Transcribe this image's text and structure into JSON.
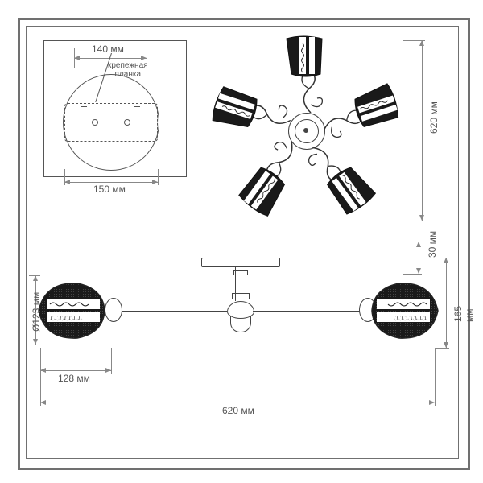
{
  "frame": {
    "outer_color": "#707070",
    "inner_color": "#707070"
  },
  "mounting_plate": {
    "label_top": "140 мм",
    "label_caption_line1": "крепежная",
    "label_caption_line2": "планка",
    "width_label": "150 мм"
  },
  "top_view": {
    "width_label": "620 мм",
    "arm_count": 5,
    "shade_body_color": "#1a1a1a",
    "shade_band_color": "#ffffff",
    "line_color": "#333333"
  },
  "side_view": {
    "diameter_label": "Ø123 мм",
    "shade_width_label": "128 мм",
    "total_width_label": "620 мм",
    "mount_height_label": "30 мм",
    "total_height_label": "165 мм",
    "shade_body_color": "#1a1a1a",
    "line_color": "#333333"
  },
  "colors": {
    "dim": "#888888",
    "text": "#555555",
    "stroke": "#444444",
    "bg": "#ffffff"
  }
}
